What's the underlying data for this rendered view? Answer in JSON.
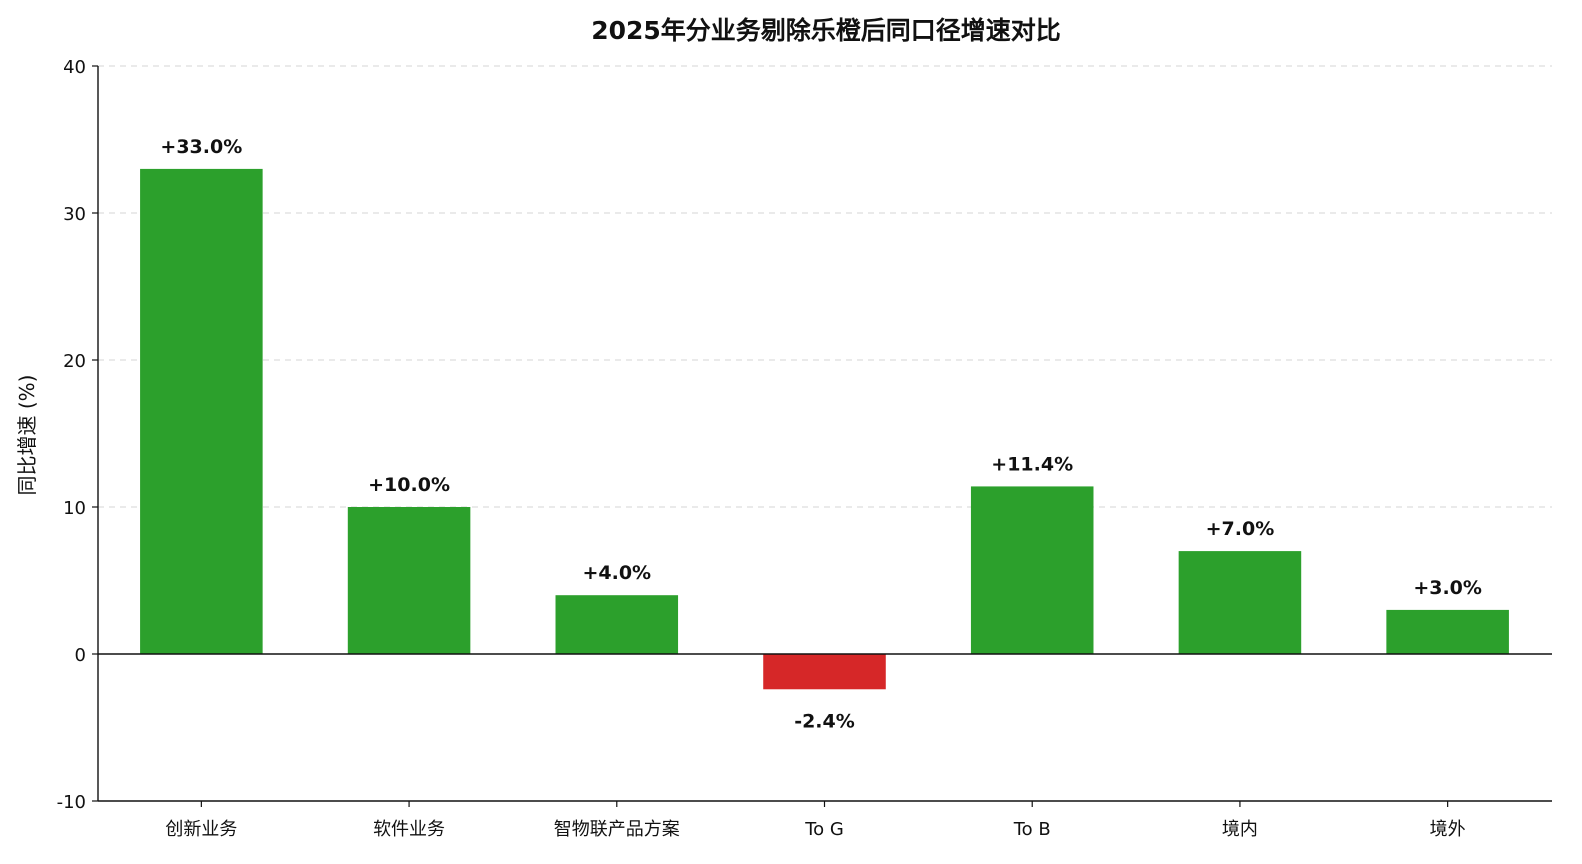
{
  "chart_data": {
    "type": "bar",
    "title": "2025年分业务剔除乐橙后同口径增速对比",
    "xlabel": "",
    "ylabel": "同比增速 (%)",
    "categories": [
      "创新业务",
      "软件业务",
      "智物联产品方案",
      "To G",
      "To B",
      "境内",
      "境外"
    ],
    "values": [
      33.0,
      10.0,
      4.0,
      -2.4,
      11.4,
      7.0,
      3.0
    ],
    "value_labels": [
      "+33.0%",
      "+10.0%",
      "+4.0%",
      "-2.4%",
      "+11.4%",
      "+7.0%",
      "+3.0%"
    ],
    "ylim": [
      -10,
      40
    ],
    "yticks": [
      -10,
      0,
      10,
      20,
      30,
      40
    ],
    "ytick_labels": [
      "-10",
      "0",
      "10",
      "20",
      "30",
      "40"
    ],
    "grid": true,
    "grid_style": "dashed",
    "legend": "none",
    "colors": {
      "positive": "#2ca02c",
      "negative": "#d62728",
      "axis": "#111111",
      "grid": "#dddddd",
      "text": "#111111"
    }
  }
}
